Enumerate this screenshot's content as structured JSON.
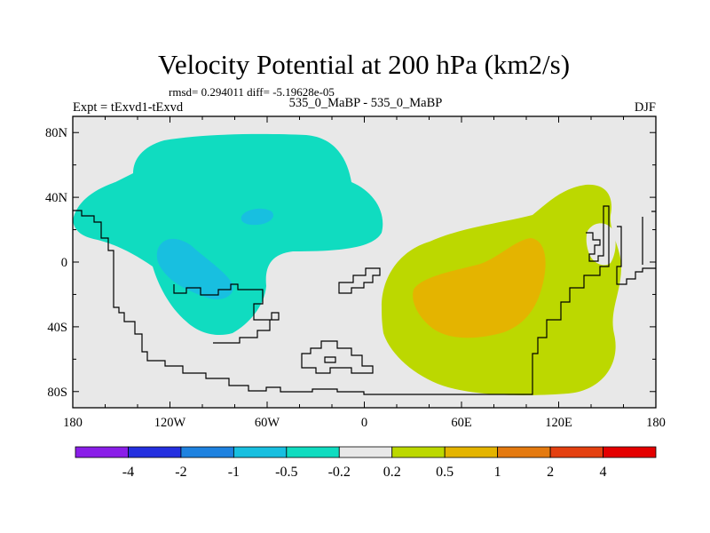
{
  "chart_data": {
    "type": "heatmap",
    "title": "Velocity Potential at 200 hPa (km2/s)",
    "stats": "rmsd= 0.294011 diff= -5.19628e-05",
    "left_label": "Expt = tExvd1-tExvd",
    "center_label": "535_0_MaBP - 535_0_MaBP",
    "right_label": "DJF",
    "x_axis": {
      "range": [
        -180,
        180
      ],
      "ticks": [
        -180,
        -120,
        -60,
        0,
        60,
        120,
        180
      ],
      "tick_labels": [
        "180",
        "120W",
        "60W",
        "0",
        "60E",
        "120E",
        "180"
      ]
    },
    "y_axis": {
      "range": [
        -90,
        90
      ],
      "ticks": [
        80,
        40,
        0,
        -40,
        -80
      ],
      "tick_labels": [
        "80N",
        "40N",
        "0",
        "40S",
        "80S"
      ]
    },
    "colorbar": {
      "colors": [
        "#8a1ee8",
        "#2430e0",
        "#1e82e0",
        "#18bfe0",
        "#10dcc0",
        "#e8e8e8",
        "#bcd800",
        "#e4b400",
        "#e47a10",
        "#e44010",
        "#e40000"
      ],
      "labels": [
        "-4",
        "-2",
        "-1",
        "-0.5",
        "-0.2",
        "0.2",
        "0.5",
        "1",
        "2",
        "4"
      ]
    },
    "regions": [
      {
        "name": "negative-lt-minus-0.2",
        "color": "#10dcc0",
        "approx_center": [
          -95,
          35
        ]
      },
      {
        "name": "negative-lt-minus-0.5-west",
        "color": "#18bfe0",
        "approx_center": [
          -100,
          -10
        ]
      },
      {
        "name": "negative-lt-minus-0.5-small",
        "color": "#18bfe0",
        "approx_center": [
          -68,
          30
        ]
      },
      {
        "name": "positive-gt-0.2",
        "color": "#bcd800",
        "approx_center": [
          85,
          -20
        ]
      },
      {
        "name": "positive-gt-0.5",
        "color": "#e4b400",
        "approx_center": [
          75,
          -20
        ]
      }
    ]
  }
}
